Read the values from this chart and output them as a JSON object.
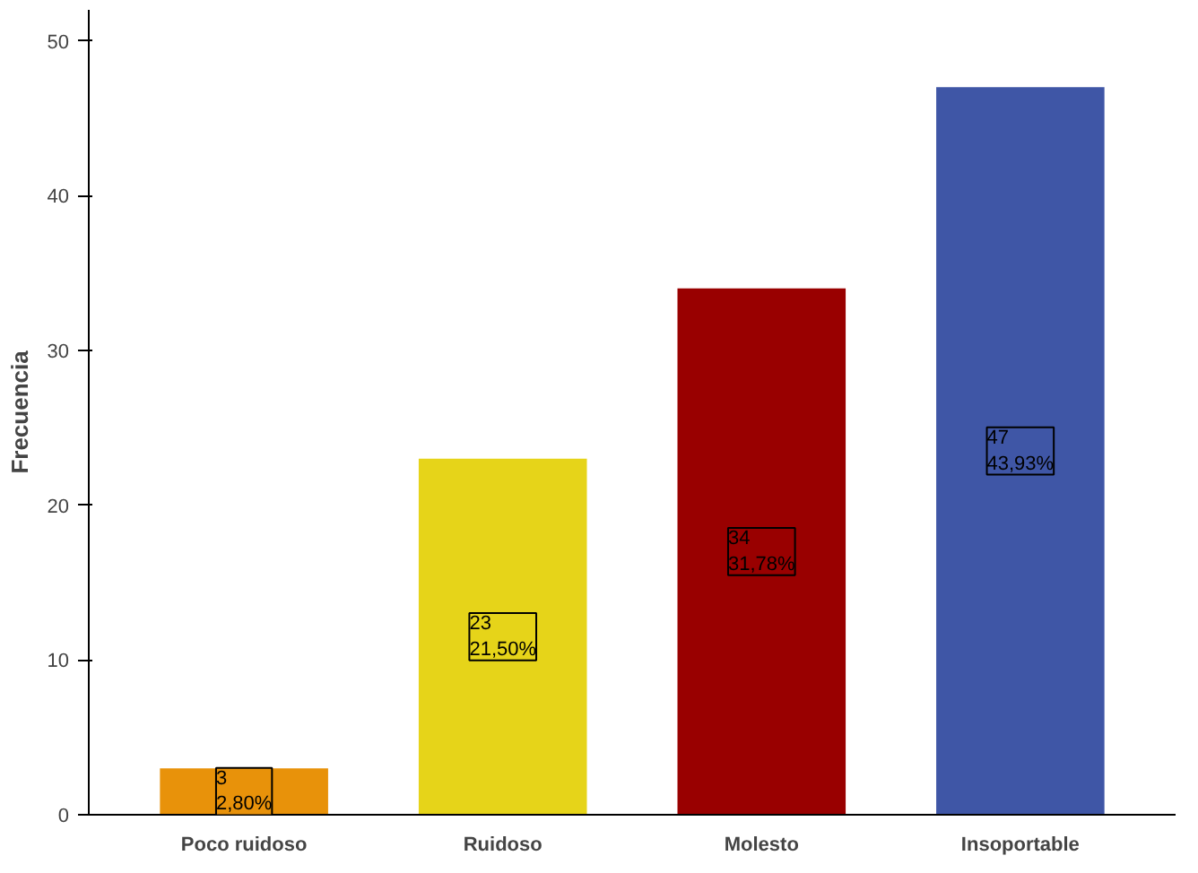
{
  "chart_data": {
    "type": "bar",
    "ylabel": "Frecuencia",
    "categories": [
      "Poco ruidoso",
      "Ruidoso",
      "Molesto",
      "Insoportable"
    ],
    "values": [
      3,
      23,
      34,
      47
    ],
    "colors": [
      "#e8920a",
      "#e6d419",
      "#990000",
      "#3f56a6"
    ],
    "value_labels": [
      "3\n2,80%",
      "23\n21,50%",
      "34\n31,78%",
      "47\n43,93%"
    ],
    "ylim": [
      0,
      52
    ],
    "yticks": [
      0,
      10,
      20,
      30,
      40,
      50
    ],
    "grid": false
  }
}
